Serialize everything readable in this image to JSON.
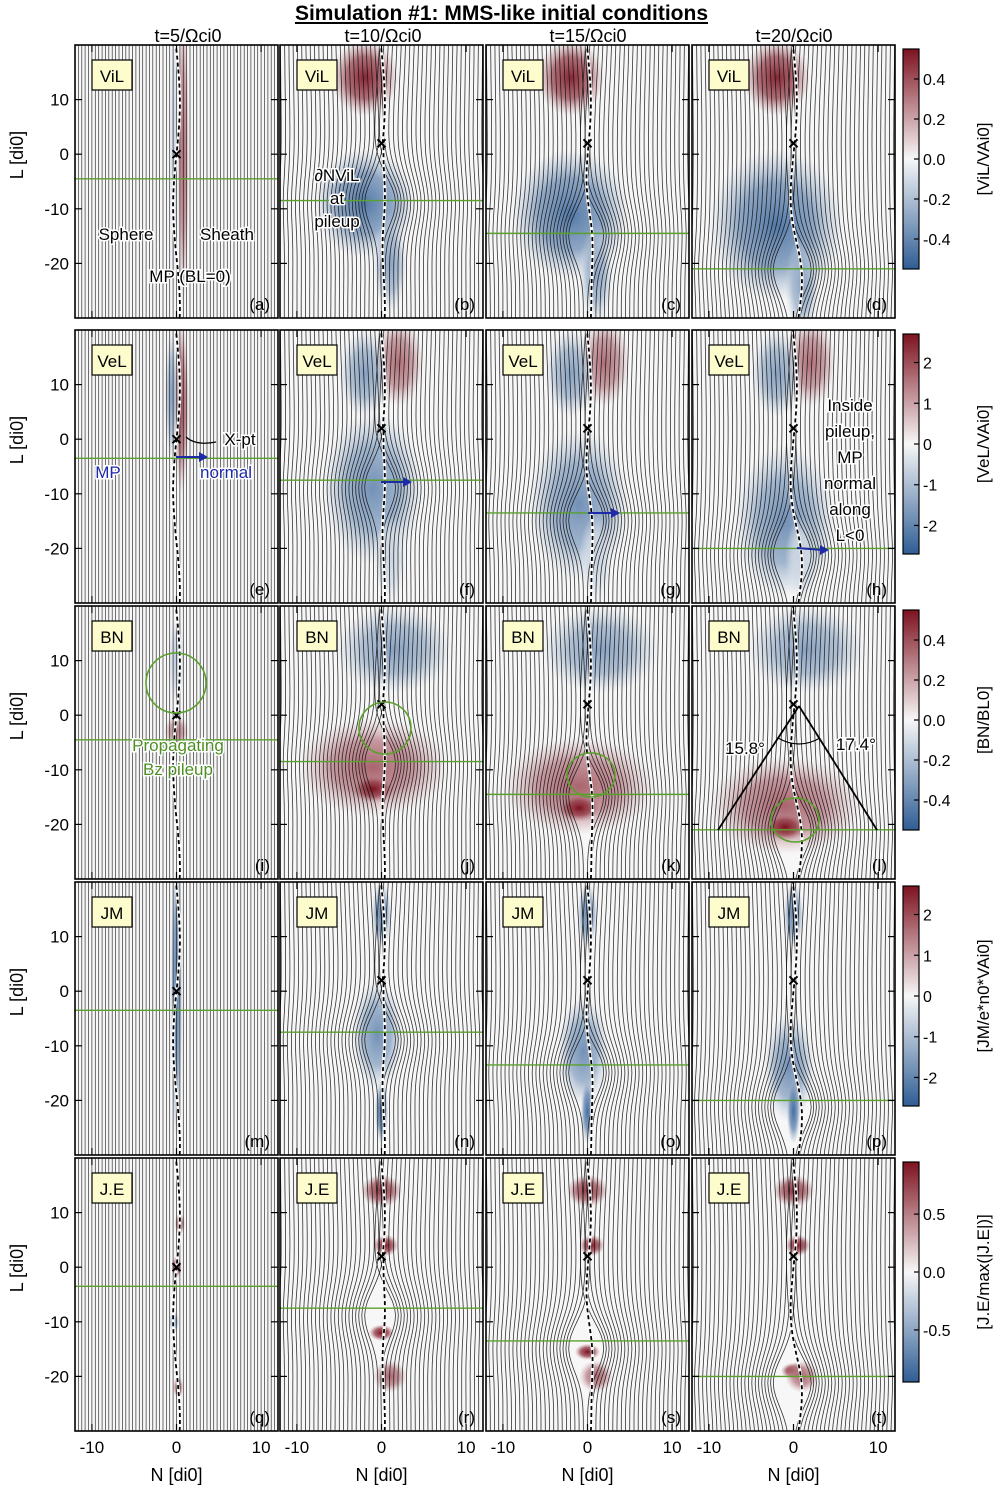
{
  "title": "Simulation #1: MMS-like initial conditions",
  "columns": [
    {
      "time_label": "t=5/Ωci0"
    },
    {
      "time_label": "t=10/Ωci0"
    },
    {
      "time_label": "t=15/Ωci0"
    },
    {
      "time_label": "t=20/Ωci0"
    }
  ],
  "chart_data": {
    "type": "heatmap",
    "xlabel": "N [di0]",
    "ylabel": "L [di0]",
    "xlim": [
      -12,
      12
    ],
    "ylim": [
      -30,
      20
    ],
    "xticks": [
      "-10",
      "0",
      "10"
    ],
    "yticks": [
      "10",
      "0",
      "-10",
      "-20"
    ],
    "xtick_values": [
      -10,
      0,
      10
    ],
    "ytick_values": [
      10,
      0,
      -10,
      -20
    ],
    "colormap": {
      "negative": "#2f5d95",
      "neutral": "#f7f7f7",
      "positive": "#7d1220"
    },
    "rows": [
      {
        "quantity": "ViL",
        "colorbar_label": "[ViL/VAi0]",
        "colorbar_ticks": [
          "0.4",
          "0.2",
          "0.0",
          "-0.2",
          "-0.4"
        ],
        "colorbar_values": [
          0.4,
          0.2,
          0.0,
          -0.2,
          -0.4
        ],
        "clim": [
          -0.55,
          0.55
        ]
      },
      {
        "quantity": "VeL",
        "colorbar_label": "[VeL/VAi0]",
        "colorbar_ticks": [
          "2",
          "1",
          "0",
          "-1",
          "-2"
        ],
        "colorbar_values": [
          2,
          1,
          0,
          -1,
          -2
        ],
        "clim": [
          -2.7,
          2.7
        ]
      },
      {
        "quantity": "BN",
        "colorbar_label": "[BN/BL0]",
        "colorbar_ticks": [
          "0.4",
          "0.2",
          "0.0",
          "-0.2",
          "-0.4"
        ],
        "colorbar_values": [
          0.4,
          0.2,
          0.0,
          -0.2,
          -0.4
        ],
        "clim": [
          -0.55,
          0.55
        ]
      },
      {
        "quantity": "JM",
        "colorbar_label": "[JM/e*n0*VAi0]",
        "colorbar_ticks": [
          "2",
          "1",
          "0",
          "-1",
          "-2"
        ],
        "colorbar_values": [
          2,
          1,
          0,
          -1,
          -2
        ],
        "clim": [
          -2.7,
          2.7
        ]
      },
      {
        "quantity": "J.E",
        "colorbar_label": "[J.E/max(|J.E|)]",
        "colorbar_ticks": [
          "0.5",
          "0.0",
          "-0.5"
        ],
        "colorbar_values": [
          0.5,
          0.0,
          -0.5
        ],
        "clim": [
          -0.95,
          0.95
        ]
      }
    ],
    "panel_letters": [
      "(a)",
      "(b)",
      "(c)",
      "(d)",
      "(e)",
      "(f)",
      "(g)",
      "(h)",
      "(i)",
      "(j)",
      "(k)",
      "(l)",
      "(m)",
      "(n)",
      "(o)",
      "(p)",
      "(q)",
      "(r)",
      "(s)",
      "(t)"
    ],
    "xpoint_L": [
      0,
      2,
      2,
      2
    ],
    "pileup_L": [
      [
        -4.5,
        -8.5,
        -14.5,
        -21
      ],
      [
        -3.5,
        -7.5,
        -13.5,
        -20
      ],
      [
        -4.5,
        -8.5,
        -14.5,
        -21
      ],
      [
        -3.5,
        -7.5,
        -13.5,
        -20
      ],
      [
        -3.5,
        -7.5,
        -13.5,
        -20
      ]
    ],
    "annotations": {
      "sphere": "Sphere",
      "sheath": "Sheath",
      "mp_bl0": "MP  (BL=0)",
      "dn_vil": "∂NViL",
      "at": "at",
      "pileup": "pileup",
      "xpt": "X-pt",
      "mp_normal_1": "MP",
      "mp_normal_2": "normal",
      "inside": [
        "Inside",
        "pileup,",
        "MP",
        "normal",
        "along",
        "L<0"
      ],
      "propagating": "Propagating",
      "bz_pileup": "Bz pileup",
      "angle_left": "15.8°",
      "angle_right": "17.4°"
    }
  }
}
